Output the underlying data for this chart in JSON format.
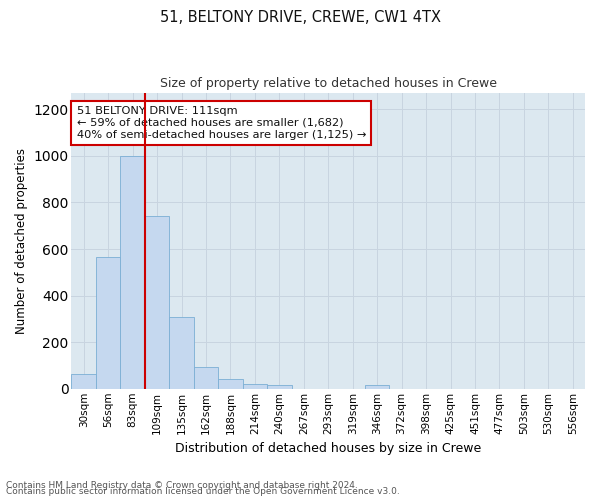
{
  "title1": "51, BELTONY DRIVE, CREWE, CW1 4TX",
  "title2": "Size of property relative to detached houses in Crewe",
  "xlabel": "Distribution of detached houses by size in Crewe",
  "ylabel": "Number of detached properties",
  "bin_labels": [
    "30sqm",
    "56sqm",
    "83sqm",
    "109sqm",
    "135sqm",
    "162sqm",
    "188sqm",
    "214sqm",
    "240sqm",
    "267sqm",
    "293sqm",
    "319sqm",
    "346sqm",
    "372sqm",
    "398sqm",
    "425sqm",
    "451sqm",
    "477sqm",
    "503sqm",
    "530sqm",
    "556sqm"
  ],
  "bar_values": [
    65,
    568,
    1000,
    740,
    308,
    95,
    40,
    22,
    15,
    0,
    0,
    0,
    15,
    0,
    0,
    0,
    0,
    0,
    0,
    0,
    0
  ],
  "bar_color": "#c5d8ef",
  "bar_edge_color": "#7baed4",
  "red_line_index": 3,
  "property_line_color": "#cc0000",
  "annotation_line1": "51 BELTONY DRIVE: 111sqm",
  "annotation_line2": "← 59% of detached houses are smaller (1,682)",
  "annotation_line3": "40% of semi-detached houses are larger (1,125) →",
  "annotation_box_color": "#ffffff",
  "annotation_box_edge_color": "#cc0000",
  "ylim": [
    0,
    1270
  ],
  "yticks": [
    0,
    200,
    400,
    600,
    800,
    1000,
    1200
  ],
  "grid_color": "#c8d4e0",
  "background_color": "#dce8f0",
  "fig_background": "#ffffff",
  "footnote1": "Contains HM Land Registry data © Crown copyright and database right 2024.",
  "footnote2": "Contains public sector information licensed under the Open Government Licence v3.0."
}
